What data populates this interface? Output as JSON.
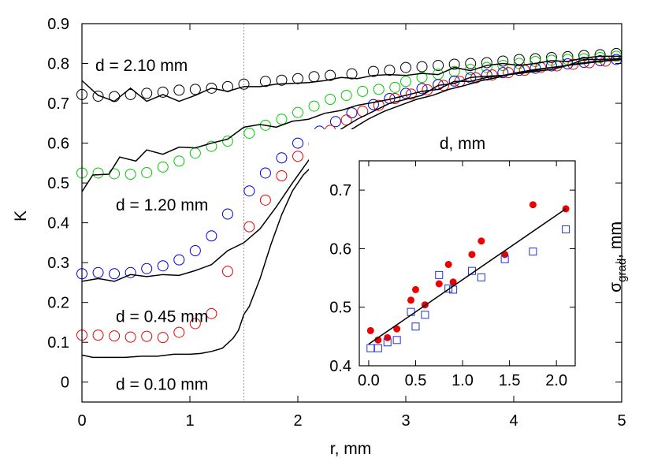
{
  "chart_data": [
    {
      "type": "scatter",
      "xlabel": "r, mm",
      "ylabel": "K",
      "xlim": [
        0,
        5
      ],
      "ylim": [
        -0.05,
        0.9
      ],
      "x_ticks": [
        0,
        1,
        2,
        3,
        4,
        5
      ],
      "y_ticks": [
        0,
        0.1,
        0.2,
        0.3,
        0.4,
        0.5,
        0.6,
        0.7,
        0.8,
        0.9
      ],
      "x_tick_labels": [
        "0",
        "1",
        "2",
        "3",
        "4",
        "5"
      ],
      "y_tick_labels": [
        "0",
        "0.1",
        "0.2",
        "0.3",
        "0.4",
        "0.5",
        "0.6",
        "0.7",
        "0.8",
        "0.9"
      ],
      "grid": false,
      "reference_line_x": 1.5,
      "annotations": [
        {
          "text": "d = 2.10 mm",
          "x": 0.98,
          "y": 0.795
        },
        {
          "text": "d = 1.20 mm",
          "x": 1.17,
          "y": 0.445
        },
        {
          "text": "d = 0.45 mm",
          "x": 1.17,
          "y": 0.165
        },
        {
          "text": "d = 0.10 mm",
          "x": 1.17,
          "y": -0.005
        }
      ],
      "series": [
        {
          "color": "#000000",
          "marker": "open-circle",
          "x": [
            0,
            0.15,
            0.3,
            0.45,
            0.6,
            0.75,
            0.9,
            1.05,
            1.2,
            1.35,
            1.5,
            1.7,
            1.85,
            2.0,
            2.15,
            2.3,
            2.5,
            2.7,
            2.85,
            3.0,
            3.15,
            3.3,
            3.45,
            3.6,
            3.75,
            3.9,
            4.05,
            4.2,
            4.35,
            4.5,
            4.65,
            4.8,
            4.95
          ],
          "y": [
            0.722,
            0.718,
            0.717,
            0.722,
            0.725,
            0.728,
            0.733,
            0.735,
            0.738,
            0.742,
            0.748,
            0.755,
            0.758,
            0.762,
            0.767,
            0.77,
            0.774,
            0.78,
            0.783,
            0.79,
            0.792,
            0.795,
            0.798,
            0.8,
            0.802,
            0.806,
            0.81,
            0.812,
            0.815,
            0.817,
            0.82,
            0.822,
            0.825
          ]
        },
        {
          "color": "#00cc00",
          "marker": "open-circle",
          "x": [
            0,
            0.15,
            0.3,
            0.45,
            0.6,
            0.75,
            0.9,
            1.05,
            1.2,
            1.35,
            1.55,
            1.7,
            1.85,
            2.0,
            2.15,
            2.3,
            2.45,
            2.6,
            2.75,
            2.9,
            3.0,
            3.15,
            3.3,
            3.45,
            3.6,
            3.75,
            3.9,
            4.05,
            4.2,
            4.35,
            4.5,
            4.65,
            4.8,
            4.95
          ],
          "y": [
            0.525,
            0.525,
            0.523,
            0.522,
            0.526,
            0.54,
            0.555,
            0.575,
            0.592,
            0.605,
            0.625,
            0.645,
            0.66,
            0.677,
            0.693,
            0.71,
            0.72,
            0.73,
            0.735,
            0.74,
            0.755,
            0.765,
            0.773,
            0.78,
            0.785,
            0.79,
            0.795,
            0.8,
            0.805,
            0.808,
            0.81,
            0.812,
            0.815,
            0.818
          ]
        },
        {
          "color": "#0000dd",
          "marker": "open-circle",
          "x": [
            0,
            0.15,
            0.3,
            0.45,
            0.6,
            0.75,
            0.9,
            1.05,
            1.2,
            1.35,
            1.55,
            1.7,
            1.85,
            2.0,
            2.2,
            2.35,
            2.5,
            2.7,
            2.85,
            3.0,
            3.15,
            3.3,
            3.45,
            3.6,
            3.75,
            3.9,
            4.05,
            4.2,
            4.35,
            4.5,
            4.65,
            4.8,
            4.95
          ],
          "y": [
            0.272,
            0.275,
            0.272,
            0.275,
            0.285,
            0.292,
            0.307,
            0.33,
            0.367,
            0.422,
            0.48,
            0.525,
            0.563,
            0.6,
            0.63,
            0.654,
            0.676,
            0.697,
            0.712,
            0.725,
            0.737,
            0.747,
            0.756,
            0.764,
            0.771,
            0.777,
            0.783,
            0.788,
            0.794,
            0.799,
            0.803,
            0.807,
            0.81
          ]
        },
        {
          "color": "#ee0000",
          "marker": "open-circle",
          "x": [
            0,
            0.15,
            0.3,
            0.45,
            0.6,
            0.75,
            0.9,
            1.05,
            1.2,
            1.35,
            1.55,
            1.7,
            1.85,
            2.0,
            2.15,
            2.3,
            2.45,
            2.6,
            2.75,
            2.9,
            3.05,
            3.2,
            3.35,
            3.5,
            3.65,
            3.8,
            3.95,
            4.1,
            4.25,
            4.4,
            4.55,
            4.7,
            4.85
          ],
          "y": [
            0.118,
            0.118,
            0.116,
            0.113,
            0.115,
            0.112,
            0.125,
            0.147,
            0.172,
            0.278,
            0.39,
            0.457,
            0.518,
            0.567,
            0.598,
            0.632,
            0.658,
            0.68,
            0.695,
            0.712,
            0.723,
            0.734,
            0.745,
            0.755,
            0.764,
            0.771,
            0.777,
            0.783,
            0.79,
            0.794,
            0.798,
            0.802,
            0.806
          ]
        },
        {
          "color": "#000000",
          "marker": "line",
          "x": [
            0,
            0.15,
            0.3,
            0.45,
            0.6,
            0.75,
            0.9,
            1.05,
            1.2,
            1.35,
            1.5,
            1.65,
            1.8,
            1.95,
            2.1,
            2.25,
            2.4,
            2.55,
            2.7,
            2.85,
            3.0,
            3.15,
            3.3,
            3.45,
            3.6,
            3.75,
            3.9,
            4.05,
            4.2,
            4.35,
            4.5,
            4.65,
            4.8,
            5.0
          ],
          "y": [
            0.757,
            0.72,
            0.705,
            0.738,
            0.705,
            0.722,
            0.705,
            0.72,
            0.738,
            0.73,
            0.742,
            0.742,
            0.748,
            0.75,
            0.752,
            0.757,
            0.765,
            0.762,
            0.77,
            0.772,
            0.77,
            0.775,
            0.772,
            0.79,
            0.782,
            0.795,
            0.8,
            0.795,
            0.8,
            0.807,
            0.805,
            0.814,
            0.818,
            0.818
          ]
        },
        {
          "color": "#000000",
          "marker": "line",
          "x": [
            0,
            0.1,
            0.25,
            0.35,
            0.5,
            0.6,
            0.75,
            0.9,
            1.05,
            1.2,
            1.35,
            1.5,
            1.65,
            1.8,
            1.95,
            2.1,
            2.25,
            2.4,
            2.55,
            2.7,
            2.85,
            3.0,
            3.15,
            3.3,
            3.45,
            3.6,
            3.75,
            3.9,
            4.05,
            4.2,
            4.35,
            4.5,
            4.65,
            4.8,
            5.0
          ],
          "y": [
            0.478,
            0.52,
            0.522,
            0.565,
            0.555,
            0.583,
            0.572,
            0.59,
            0.588,
            0.6,
            0.61,
            0.64,
            0.647,
            0.64,
            0.655,
            0.66,
            0.675,
            0.682,
            0.695,
            0.702,
            0.71,
            0.72,
            0.73,
            0.735,
            0.755,
            0.755,
            0.765,
            0.77,
            0.775,
            0.78,
            0.785,
            0.795,
            0.81,
            0.81,
            0.812
          ]
        },
        {
          "color": "#000000",
          "marker": "line",
          "x": [
            0,
            0.15,
            0.3,
            0.45,
            0.6,
            0.75,
            0.9,
            1.05,
            1.2,
            1.35,
            1.5,
            1.65,
            1.8,
            1.95,
            2.1,
            2.25,
            2.4,
            2.55,
            2.7,
            2.85,
            3.0,
            3.15,
            3.3,
            3.45,
            3.6,
            3.75,
            3.9,
            4.05,
            4.2,
            4.35,
            4.5,
            4.65,
            4.8,
            5.0
          ],
          "y": [
            0.253,
            0.26,
            0.253,
            0.27,
            0.265,
            0.27,
            0.268,
            0.28,
            0.295,
            0.33,
            0.35,
            0.385,
            0.44,
            0.5,
            0.557,
            0.6,
            0.635,
            0.66,
            0.68,
            0.7,
            0.71,
            0.72,
            0.745,
            0.75,
            0.765,
            0.768,
            0.77,
            0.778,
            0.785,
            0.79,
            0.795,
            0.8,
            0.805,
            0.81
          ]
        },
        {
          "color": "#000000",
          "marker": "line",
          "x": [
            0,
            0.1,
            0.25,
            0.4,
            0.55,
            0.7,
            0.85,
            1.0,
            1.1,
            1.2,
            1.3,
            1.4,
            1.45,
            1.5,
            1.55,
            1.65,
            1.75,
            1.85,
            1.95,
            2.05,
            2.2,
            2.35,
            2.5,
            2.65,
            2.8,
            2.95,
            3.1,
            3.25,
            3.4,
            3.55,
            3.7,
            3.85,
            4.0,
            4.15,
            4.3,
            4.45,
            4.6,
            4.75,
            5.0
          ],
          "y": [
            0.068,
            0.062,
            0.062,
            0.062,
            0.065,
            0.065,
            0.07,
            0.07,
            0.072,
            0.077,
            0.085,
            0.11,
            0.13,
            0.17,
            0.19,
            0.26,
            0.345,
            0.42,
            0.48,
            0.52,
            0.56,
            0.6,
            0.635,
            0.66,
            0.68,
            0.695,
            0.71,
            0.72,
            0.735,
            0.745,
            0.757,
            0.765,
            0.775,
            0.78,
            0.788,
            0.793,
            0.8,
            0.805,
            0.81
          ]
        }
      ]
    },
    {
      "type": "scatter",
      "title": "d, mm",
      "ylabel_main": "σ",
      "ylabel_sub": "grad",
      "ylabel_tail": ", mm",
      "xlim": [
        -0.1,
        2.2
      ],
      "ylim": [
        0.4,
        0.75
      ],
      "x_ticks": [
        0,
        0.5,
        1,
        1.5,
        2
      ],
      "y_ticks": [
        0.4,
        0.5,
        0.6,
        0.7
      ],
      "x_tick_labels": [
        "0.0",
        "0.5",
        "1.0",
        "1.5",
        "2.0"
      ],
      "y_tick_labels": [
        "0.4",
        "0.5",
        "0.6",
        "0.7"
      ],
      "grid": false,
      "series": [
        {
          "color": "#ee0000",
          "marker": "filled-circle",
          "x": [
            0.02,
            0.1,
            0.2,
            0.3,
            0.45,
            0.5,
            0.6,
            0.75,
            0.85,
            0.9,
            1.1,
            1.2,
            1.45,
            1.75,
            2.1
          ],
          "y": [
            0.46,
            0.444,
            0.448,
            0.463,
            0.512,
            0.53,
            0.504,
            0.54,
            0.573,
            0.543,
            0.59,
            0.613,
            0.59,
            0.675,
            0.668
          ]
        },
        {
          "color": "#2233cc",
          "marker": "open-square",
          "x": [
            0.02,
            0.1,
            0.2,
            0.3,
            0.45,
            0.5,
            0.6,
            0.75,
            0.85,
            0.9,
            1.1,
            1.2,
            1.45,
            1.75,
            2.1
          ],
          "y": [
            0.43,
            0.43,
            0.44,
            0.444,
            0.492,
            0.467,
            0.487,
            0.555,
            0.532,
            0.53,
            0.562,
            0.551,
            0.582,
            0.595,
            0.633
          ]
        },
        {
          "color": "#000000",
          "marker": "line",
          "x": [
            0,
            2.1
          ],
          "y": [
            0.437,
            0.668
          ]
        }
      ]
    }
  ]
}
